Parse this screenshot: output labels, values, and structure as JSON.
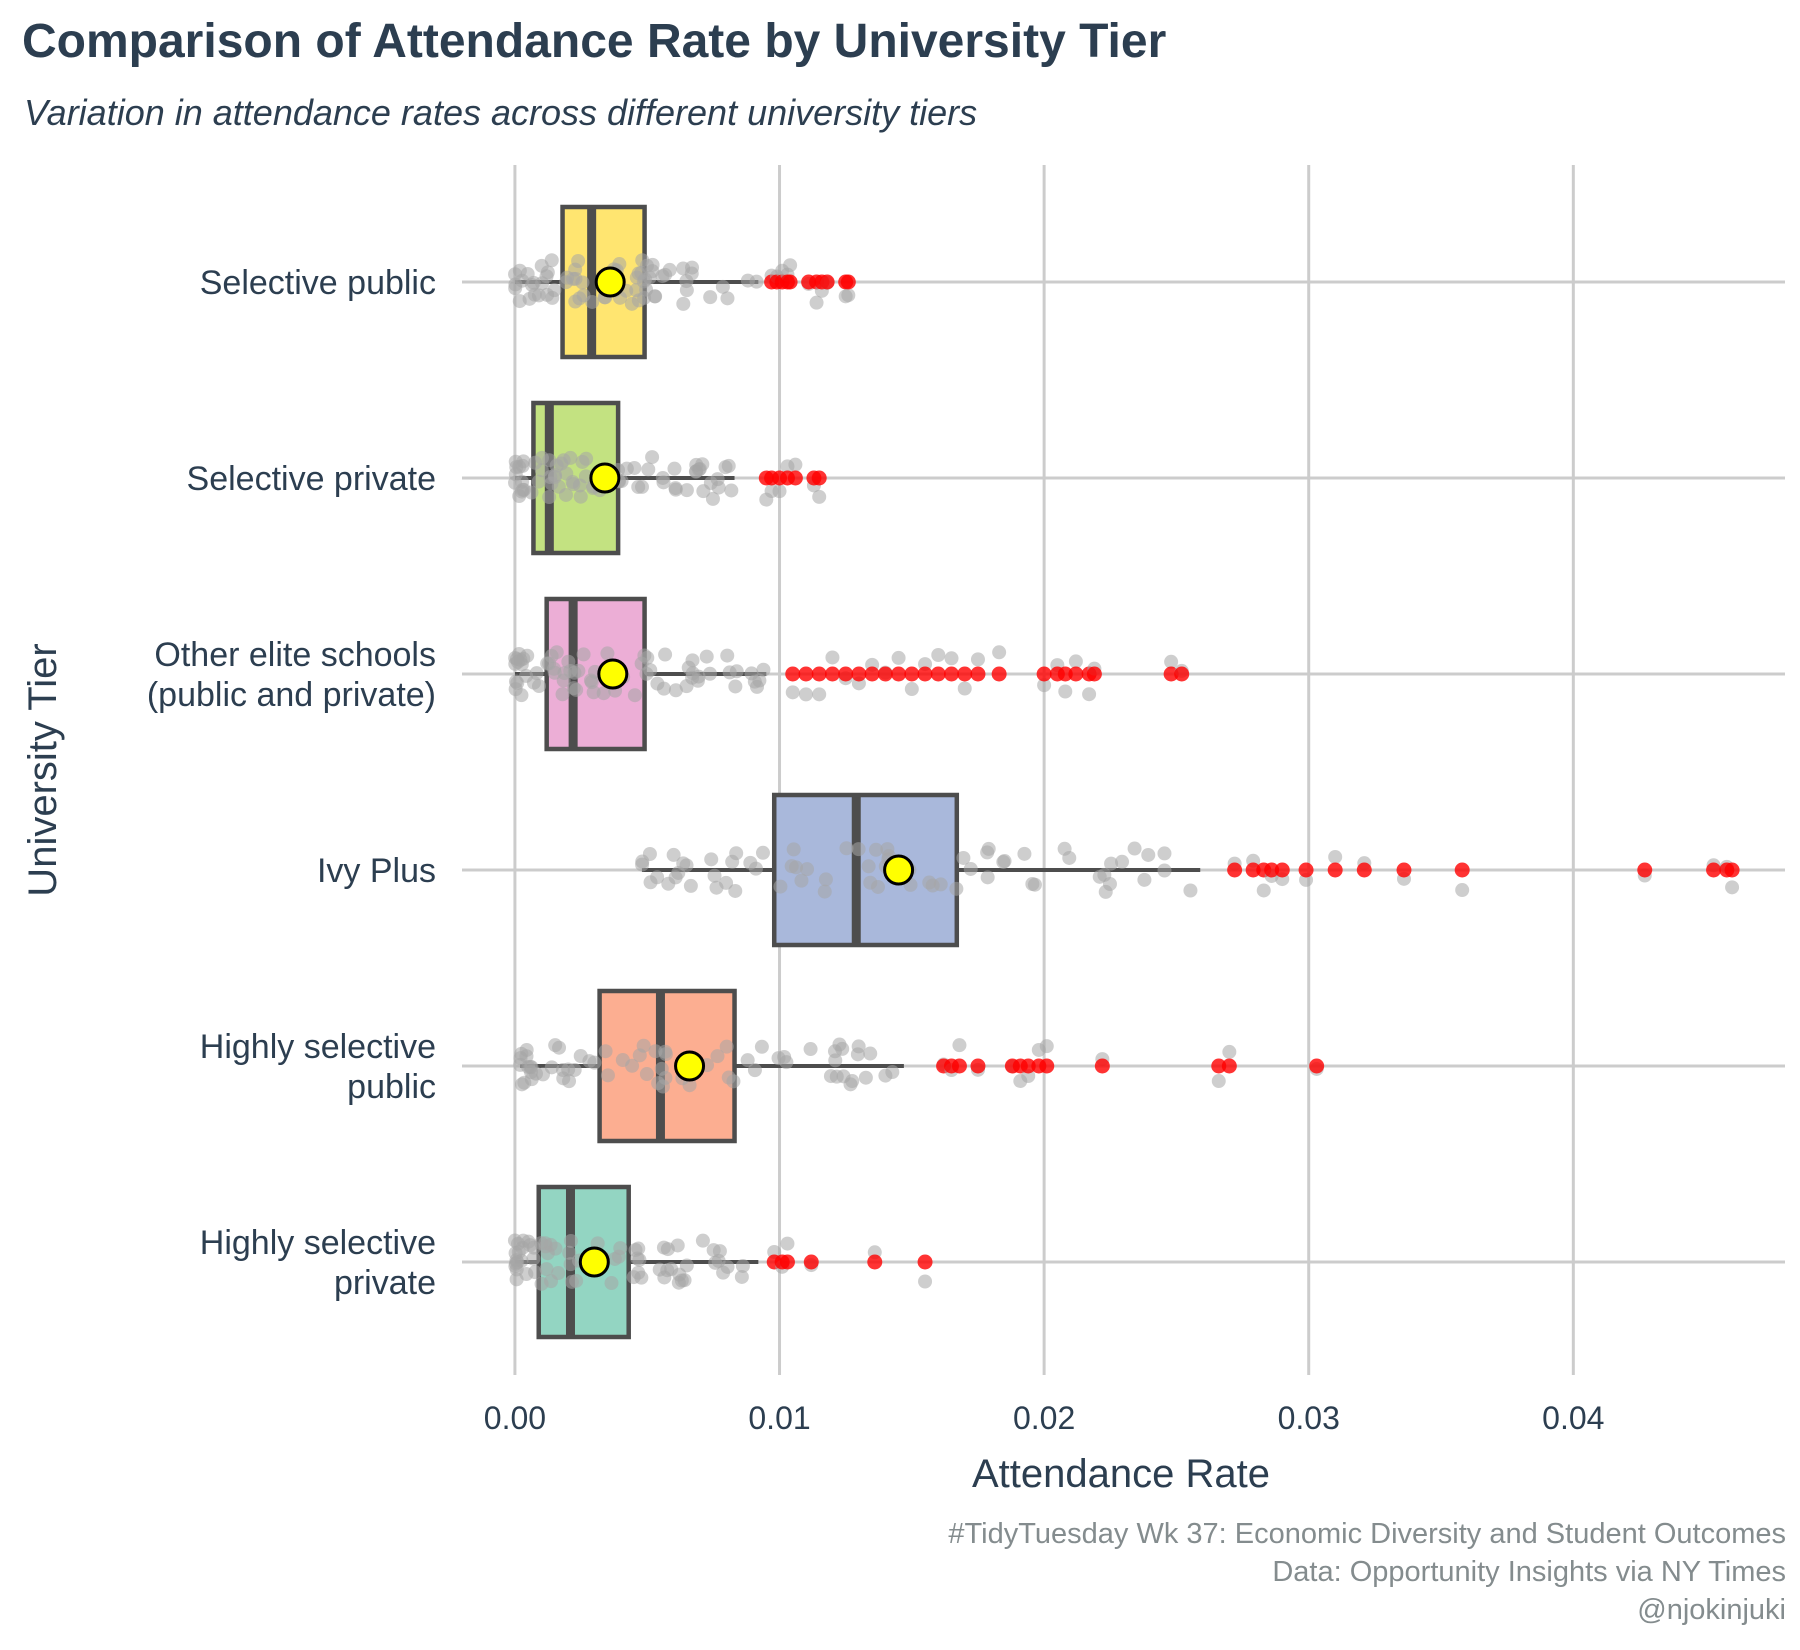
{
  "title": "Comparison of Attendance Rate by University Tier",
  "subtitle": "Variation in attendance rates across different university tiers",
  "caption": [
    "#TidyTuesday Wk 37: Economic Diversity and Student Outcomes",
    "Data: Opportunity Insights via NY Times",
    "@njokinjuki"
  ],
  "colors": {
    "text": "#2c3e50",
    "caption": "#848c8e",
    "grid": "#cccccc",
    "box_outline": "#4d4d4d",
    "point": "#a6a6a6",
    "outlier": "#ff0000",
    "mean_fill": "#ffff00",
    "mean_outline": "#000000"
  },
  "chart_data": {
    "type": "box",
    "xlabel": "Attendance Rate",
    "ylabel": "University Tier",
    "xlim": [
      -0.002,
      0.048
    ],
    "xticks": [
      "0.00",
      "0.01",
      "0.02",
      "0.03",
      "0.04"
    ],
    "xtick_values": [
      0,
      0.01,
      0.02,
      0.03,
      0.04
    ],
    "grid": true,
    "legend": "none",
    "series": [
      {
        "name": "Selective public",
        "label_lines": [
          "Selective public"
        ],
        "fill": "#ffe570",
        "stats": {
          "min": 0.0,
          "q1": 0.0018,
          "median": 0.0029,
          "q3": 0.0049,
          "max": 0.0092,
          "mean": 0.0036
        },
        "points_range": [
          0.0,
          0.0092
        ],
        "outliers": [
          0.0097,
          0.0099,
          0.0101,
          0.0103,
          0.0104,
          0.0111,
          0.0114,
          0.0116,
          0.0118,
          0.0125,
          0.0126
        ]
      },
      {
        "name": "Selective private",
        "label_lines": [
          "Selective private"
        ],
        "fill": "#c3e281",
        "stats": {
          "min": 0.0,
          "q1": 0.0007,
          "median": 0.0013,
          "q3": 0.0039,
          "max": 0.0083,
          "mean": 0.0034
        },
        "points_range": [
          0.0,
          0.0083
        ],
        "outliers": [
          0.0095,
          0.0097,
          0.01,
          0.0103,
          0.0106,
          0.0113,
          0.0115
        ]
      },
      {
        "name": "Other elite schools (public and private)",
        "label_lines": [
          "Other elite schools",
          "(public and private)"
        ],
        "fill": "#ecaed6",
        "stats": {
          "min": 0.0,
          "q1": 0.0012,
          "median": 0.0022,
          "q3": 0.0049,
          "max": 0.0095,
          "mean": 0.0037
        },
        "points_range": [
          0.0,
          0.0095
        ],
        "outliers": [
          0.0105,
          0.011,
          0.0115,
          0.012,
          0.0125,
          0.013,
          0.0135,
          0.014,
          0.0145,
          0.015,
          0.0155,
          0.016,
          0.0165,
          0.017,
          0.0175,
          0.0183,
          0.02,
          0.0205,
          0.0208,
          0.0212,
          0.0217,
          0.0219,
          0.0248,
          0.0252
        ]
      },
      {
        "name": "Ivy Plus",
        "label_lines": [
          "Ivy Plus"
        ],
        "fill": "#a9b8db",
        "stats": {
          "min": 0.0048,
          "q1": 0.0098,
          "median": 0.0129,
          "q3": 0.0167,
          "max": 0.0259,
          "mean": 0.0145
        },
        "points_range": [
          0.0048,
          0.0259
        ],
        "outliers": [
          0.0272,
          0.0279,
          0.0283,
          0.0286,
          0.029,
          0.0299,
          0.031,
          0.0321,
          0.0336,
          0.0358,
          0.0427,
          0.0453,
          0.0458,
          0.046
        ]
      },
      {
        "name": "Highly selective public",
        "label_lines": [
          "Highly selective",
          "public"
        ],
        "fill": "#fcae91",
        "stats": {
          "min": 0.0002,
          "q1": 0.0032,
          "median": 0.0055,
          "q3": 0.0083,
          "max": 0.0147,
          "mean": 0.0066
        },
        "points_range": [
          0.0002,
          0.0147
        ],
        "outliers": [
          0.0162,
          0.0165,
          0.0168,
          0.0175,
          0.0188,
          0.0191,
          0.0194,
          0.0198,
          0.0201,
          0.0222,
          0.0266,
          0.027,
          0.0303
        ]
      },
      {
        "name": "Highly selective private",
        "label_lines": [
          "Highly selective",
          "private"
        ],
        "fill": "#93d5c2",
        "stats": {
          "min": 0.0,
          "q1": 0.0009,
          "median": 0.0021,
          "q3": 0.0043,
          "max": 0.0092,
          "mean": 0.003
        },
        "points_range": [
          0.0,
          0.0092
        ],
        "outliers": [
          0.0098,
          0.0101,
          0.0103,
          0.0112,
          0.0136,
          0.0155
        ]
      }
    ]
  }
}
